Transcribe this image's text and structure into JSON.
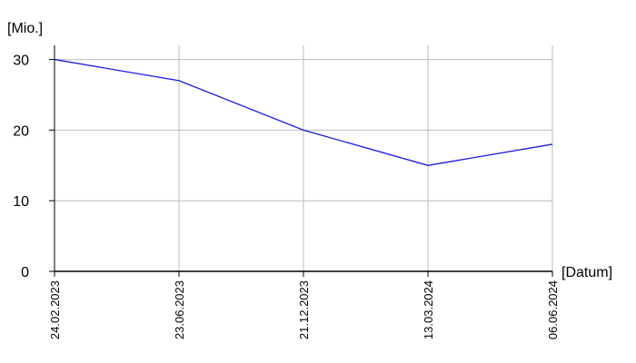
{
  "chart_data": {
    "type": "line",
    "y_label": "[Mio.]",
    "x_label": "[Datum]",
    "categories": [
      "24.02.2023",
      "23.06.2023",
      "21.12.2023",
      "13.03.2024",
      "06.06.2024"
    ],
    "values": [
      30,
      27,
      20,
      15,
      18
    ],
    "color": "#1a1adc",
    "ylim": [
      0,
      32
    ],
    "yticks": [
      0,
      10,
      20,
      30
    ],
    "grid": true
  }
}
